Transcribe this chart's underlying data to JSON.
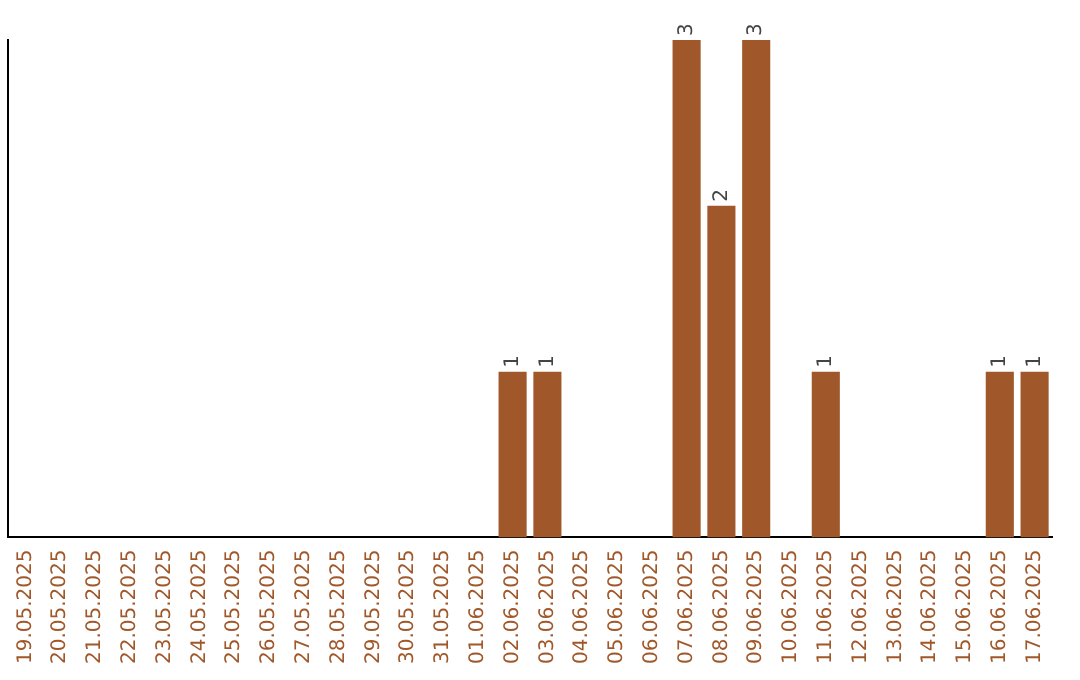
{
  "chart_data": {
    "type": "bar",
    "categories": [
      "19.05.2025",
      "20.05.2025",
      "21.05.2025",
      "22.05.2025",
      "23.05.2025",
      "24.05.2025",
      "25.05.2025",
      "26.05.2025",
      "27.05.2025",
      "28.05.2025",
      "29.05.2025",
      "30.05.2025",
      "31.05.2025",
      "01.06.2025",
      "02.06.2025",
      "03.06.2025",
      "04.06.2025",
      "05.06.2025",
      "06.06.2025",
      "07.06.2025",
      "08.06.2025",
      "09.06.2025",
      "10.06.2025",
      "11.06.2025",
      "12.06.2025",
      "13.06.2025",
      "14.06.2025",
      "15.06.2025",
      "16.06.2025",
      "17.06.2025"
    ],
    "values": [
      null,
      null,
      null,
      null,
      null,
      null,
      null,
      null,
      null,
      null,
      null,
      null,
      null,
      null,
      1,
      1,
      null,
      null,
      null,
      3,
      2,
      3,
      null,
      1,
      null,
      null,
      null,
      null,
      1,
      1
    ],
    "data_labels": true,
    "ylim": [
      0,
      3
    ],
    "color": "#a0582a",
    "grid": false,
    "legend": false,
    "tick_labels": "x"
  }
}
